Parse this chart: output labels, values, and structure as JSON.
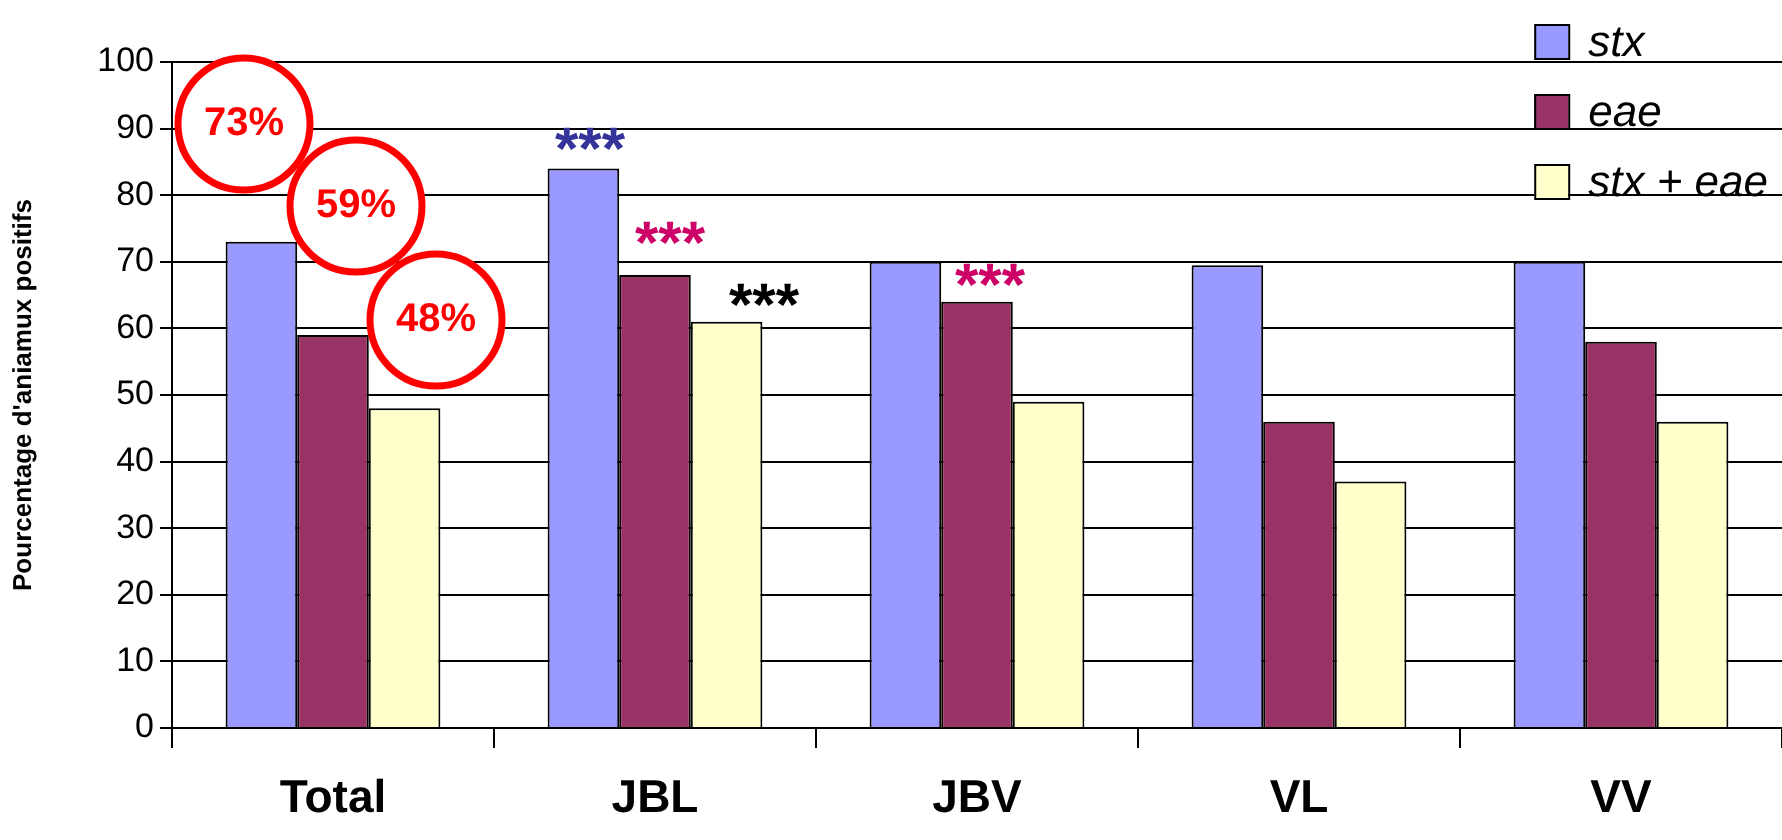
{
  "chart_data": {
    "type": "bar",
    "ylabel": "Pourcentage d'aniamux positifs",
    "categories": [
      "Total",
      "JBL",
      "JBV",
      "VL",
      "VV"
    ],
    "series": [
      {
        "name": "stx",
        "color": "#9999ff",
        "values": [
          73,
          84,
          70,
          69.5,
          70
        ]
      },
      {
        "name": "eae",
        "color": "#993366",
        "values": [
          59,
          68,
          64,
          46,
          58
        ]
      },
      {
        "name": "stx + eae",
        "color": "#ffffcc",
        "values": [
          48,
          61,
          49,
          37,
          46
        ]
      }
    ],
    "ylim": [
      0,
      100
    ],
    "yticks": [
      0,
      10,
      20,
      30,
      40,
      50,
      60,
      70,
      80,
      90,
      100
    ],
    "grid": "y",
    "legend": "top right",
    "annotations": [
      "73%",
      "59%",
      "48%",
      "***",
      "***",
      "***",
      "***"
    ]
  }
}
